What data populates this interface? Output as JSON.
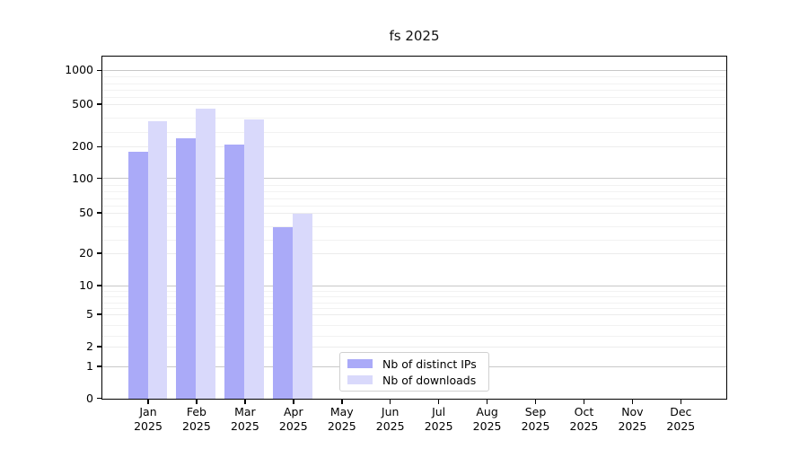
{
  "title": "fs 2025",
  "y_axis": {
    "ticks": [
      0,
      1,
      2,
      5,
      10,
      20,
      50,
      100,
      200,
      500,
      1000
    ]
  },
  "x_axis": {
    "months": [
      "Jan",
      "Feb",
      "Mar",
      "Apr",
      "May",
      "Jun",
      "Jul",
      "Aug",
      "Sep",
      "Oct",
      "Nov",
      "Dec"
    ],
    "year": "2025"
  },
  "legend": {
    "items": [
      {
        "label": "Nb of distinct IPs",
        "color": "#aaaaf8"
      },
      {
        "label": "Nb of downloads",
        "color": "#d9d9fb"
      }
    ]
  },
  "chart_data": {
    "type": "bar",
    "title": "fs 2025",
    "categories": [
      "Jan 2025",
      "Feb 2025",
      "Mar 2025",
      "Apr 2025",
      "May 2025",
      "Jun 2025",
      "Jul 2025",
      "Aug 2025",
      "Sep 2025",
      "Oct 2025",
      "Nov 2025",
      "Dec 2025"
    ],
    "series": [
      {
        "name": "Nb of distinct IPs",
        "color": "#aaaaf8",
        "values": [
          185,
          265,
          215,
          40,
          0,
          0,
          0,
          0,
          0,
          0,
          0,
          0
        ]
      },
      {
        "name": "Nb of downloads",
        "color": "#d9d9fb",
        "values": [
          380,
          470,
          395,
          50,
          0,
          0,
          0,
          0,
          0,
          0,
          0,
          0
        ]
      }
    ],
    "yticks": [
      0,
      1,
      2,
      5,
      10,
      20,
      50,
      100,
      200,
      500,
      1000
    ],
    "yscale": "log-like with zero baseline",
    "ylim": [
      0,
      1400
    ],
    "grid": true,
    "xlabel": "",
    "ylabel": "",
    "legend_position": "lower center, inside axes"
  }
}
